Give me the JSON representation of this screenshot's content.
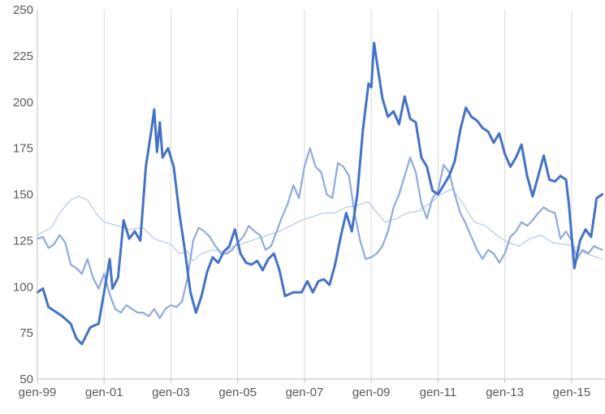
{
  "chart_data": {
    "type": "line",
    "title": "",
    "xlabel": "",
    "ylabel": "",
    "xlim": [
      "1999-01",
      "2015-12"
    ],
    "ylim": [
      50,
      250
    ],
    "grid": {
      "vertical": true,
      "horizontal": false
    },
    "legend": "none",
    "y_ticks": [
      50,
      75,
      100,
      125,
      150,
      175,
      200,
      225,
      250
    ],
    "x_ticks": [
      {
        "label": "gen-99",
        "date": "1999-01"
      },
      {
        "label": "gen-01",
        "date": "2001-01"
      },
      {
        "label": "gen-03",
        "date": "2003-01"
      },
      {
        "label": "gen-05",
        "date": "2005-01"
      },
      {
        "label": "gen-07",
        "date": "2007-01"
      },
      {
        "label": "gen-09",
        "date": "2009-01"
      },
      {
        "label": "gen-11",
        "date": "2011-01"
      },
      {
        "label": "gen-13",
        "date": "2013-01"
      },
      {
        "label": "gen-15",
        "date": "2015-01"
      }
    ],
    "series": [
      {
        "color": "#4472c4",
        "width": 3.0,
        "points": [
          [
            "1999-01",
            97
          ],
          [
            "1999-03",
            99
          ],
          [
            "1999-05",
            89
          ],
          [
            "1999-07",
            87
          ],
          [
            "1999-10",
            84
          ],
          [
            "2000-01",
            80
          ],
          [
            "2000-03",
            72
          ],
          [
            "2000-05",
            69
          ],
          [
            "2000-08",
            78
          ],
          [
            "2000-11",
            80
          ],
          [
            "2001-01",
            97
          ],
          [
            "2001-03",
            115
          ],
          [
            "2001-04",
            99
          ],
          [
            "2001-06",
            105
          ],
          [
            "2001-08",
            136
          ],
          [
            "2001-10",
            126
          ],
          [
            "2001-12",
            130
          ],
          [
            "2002-02",
            125
          ],
          [
            "2002-04",
            165
          ],
          [
            "2002-06",
            185
          ],
          [
            "2002-07",
            196
          ],
          [
            "2002-08",
            173
          ],
          [
            "2002-09",
            189
          ],
          [
            "2002-10",
            170
          ],
          [
            "2002-12",
            175
          ],
          [
            "2003-02",
            165
          ],
          [
            "2003-04",
            140
          ],
          [
            "2003-06",
            120
          ],
          [
            "2003-08",
            97
          ],
          [
            "2003-10",
            86
          ],
          [
            "2003-12",
            95
          ],
          [
            "2004-02",
            108
          ],
          [
            "2004-04",
            116
          ],
          [
            "2004-06",
            113
          ],
          [
            "2004-08",
            119
          ],
          [
            "2004-10",
            122
          ],
          [
            "2004-12",
            131
          ],
          [
            "2005-02",
            118
          ],
          [
            "2005-04",
            113
          ],
          [
            "2005-06",
            112
          ],
          [
            "2005-08",
            114
          ],
          [
            "2005-10",
            109
          ],
          [
            "2005-12",
            115
          ],
          [
            "2006-02",
            118
          ],
          [
            "2006-04",
            109
          ],
          [
            "2006-06",
            95
          ],
          [
            "2006-09",
            97
          ],
          [
            "2006-12",
            97
          ],
          [
            "2007-02",
            103
          ],
          [
            "2007-04",
            97
          ],
          [
            "2007-06",
            103
          ],
          [
            "2007-08",
            104
          ],
          [
            "2007-10",
            101
          ],
          [
            "2007-12",
            112
          ],
          [
            "2008-02",
            127
          ],
          [
            "2008-04",
            140
          ],
          [
            "2008-06",
            130
          ],
          [
            "2008-08",
            150
          ],
          [
            "2008-10",
            185
          ],
          [
            "2008-12",
            210
          ],
          [
            "2009-01",
            208
          ],
          [
            "2009-02",
            232
          ],
          [
            "2009-03",
            222
          ],
          [
            "2009-05",
            202
          ],
          [
            "2009-07",
            192
          ],
          [
            "2009-09",
            195
          ],
          [
            "2009-11",
            188
          ],
          [
            "2010-01",
            203
          ],
          [
            "2010-03",
            191
          ],
          [
            "2010-05",
            189
          ],
          [
            "2010-07",
            170
          ],
          [
            "2010-09",
            165
          ],
          [
            "2010-11",
            152
          ],
          [
            "2011-01",
            150
          ],
          [
            "2011-03",
            155
          ],
          [
            "2011-05",
            160
          ],
          [
            "2011-07",
            168
          ],
          [
            "2011-09",
            185
          ],
          [
            "2011-11",
            197
          ],
          [
            "2012-01",
            192
          ],
          [
            "2012-03",
            190
          ],
          [
            "2012-05",
            186
          ],
          [
            "2012-07",
            184
          ],
          [
            "2012-09",
            178
          ],
          [
            "2012-11",
            183
          ],
          [
            "2013-01",
            172
          ],
          [
            "2013-03",
            165
          ],
          [
            "2013-05",
            170
          ],
          [
            "2013-07",
            177
          ],
          [
            "2013-09",
            160
          ],
          [
            "2013-11",
            149
          ],
          [
            "2014-01",
            160
          ],
          [
            "2014-03",
            171
          ],
          [
            "2014-05",
            158
          ],
          [
            "2014-07",
            157
          ],
          [
            "2014-09",
            160
          ],
          [
            "2014-11",
            158
          ],
          [
            "2014-12",
            145
          ],
          [
            "2015-02",
            110
          ],
          [
            "2015-04",
            125
          ],
          [
            "2015-06",
            131
          ],
          [
            "2015-08",
            127
          ],
          [
            "2015-10",
            148
          ],
          [
            "2015-12",
            150
          ]
        ]
      },
      {
        "color": "#8faadc",
        "width": 2.2,
        "points": [
          [
            "1999-01",
            126
          ],
          [
            "1999-03",
            127
          ],
          [
            "1999-05",
            121
          ],
          [
            "1999-07",
            123
          ],
          [
            "1999-09",
            128
          ],
          [
            "1999-11",
            124
          ],
          [
            "2000-01",
            112
          ],
          [
            "2000-03",
            110
          ],
          [
            "2000-05",
            107
          ],
          [
            "2000-07",
            115
          ],
          [
            "2000-09",
            105
          ],
          [
            "2000-11",
            99
          ],
          [
            "2001-01",
            107
          ],
          [
            "2001-03",
            96
          ],
          [
            "2001-05",
            88
          ],
          [
            "2001-07",
            86
          ],
          [
            "2001-09",
            90
          ],
          [
            "2001-11",
            88
          ],
          [
            "2002-01",
            86
          ],
          [
            "2002-03",
            86
          ],
          [
            "2002-05",
            84
          ],
          [
            "2002-07",
            88
          ],
          [
            "2002-09",
            83
          ],
          [
            "2002-11",
            88
          ],
          [
            "2003-01",
            90
          ],
          [
            "2003-03",
            89
          ],
          [
            "2003-05",
            92
          ],
          [
            "2003-07",
            105
          ],
          [
            "2003-09",
            125
          ],
          [
            "2003-11",
            132
          ],
          [
            "2004-01",
            130
          ],
          [
            "2004-03",
            127
          ],
          [
            "2004-05",
            122
          ],
          [
            "2004-07",
            118
          ],
          [
            "2004-09",
            118
          ],
          [
            "2004-11",
            120
          ],
          [
            "2005-01",
            124
          ],
          [
            "2005-03",
            127
          ],
          [
            "2005-05",
            133
          ],
          [
            "2005-07",
            130
          ],
          [
            "2005-09",
            128
          ],
          [
            "2005-11",
            120
          ],
          [
            "2006-01",
            122
          ],
          [
            "2006-03",
            130
          ],
          [
            "2006-05",
            138
          ],
          [
            "2006-07",
            145
          ],
          [
            "2006-09",
            155
          ],
          [
            "2006-11",
            148
          ],
          [
            "2007-01",
            165
          ],
          [
            "2007-03",
            175
          ],
          [
            "2007-05",
            165
          ],
          [
            "2007-07",
            162
          ],
          [
            "2007-09",
            150
          ],
          [
            "2007-11",
            148
          ],
          [
            "2008-01",
            167
          ],
          [
            "2008-03",
            165
          ],
          [
            "2008-05",
            160
          ],
          [
            "2008-07",
            140
          ],
          [
            "2008-09",
            125
          ],
          [
            "2008-11",
            115
          ],
          [
            "2009-01",
            116
          ],
          [
            "2009-03",
            118
          ],
          [
            "2009-05",
            122
          ],
          [
            "2009-07",
            130
          ],
          [
            "2009-09",
            143
          ],
          [
            "2009-11",
            150
          ],
          [
            "2010-01",
            160
          ],
          [
            "2010-03",
            170
          ],
          [
            "2010-05",
            162
          ],
          [
            "2010-07",
            145
          ],
          [
            "2010-09",
            137
          ],
          [
            "2010-11",
            148
          ],
          [
            "2011-01",
            152
          ],
          [
            "2011-03",
            166
          ],
          [
            "2011-05",
            162
          ],
          [
            "2011-07",
            150
          ],
          [
            "2011-09",
            140
          ],
          [
            "2011-11",
            134
          ],
          [
            "2012-01",
            127
          ],
          [
            "2012-03",
            120
          ],
          [
            "2012-05",
            115
          ],
          [
            "2012-07",
            120
          ],
          [
            "2012-09",
            118
          ],
          [
            "2012-11",
            113
          ],
          [
            "2013-01",
            118
          ],
          [
            "2013-03",
            127
          ],
          [
            "2013-05",
            130
          ],
          [
            "2013-07",
            135
          ],
          [
            "2013-09",
            133
          ],
          [
            "2013-11",
            136
          ],
          [
            "2014-01",
            140
          ],
          [
            "2014-03",
            143
          ],
          [
            "2014-05",
            141
          ],
          [
            "2014-07",
            140
          ],
          [
            "2014-09",
            126
          ],
          [
            "2014-11",
            130
          ],
          [
            "2015-01",
            125
          ],
          [
            "2015-03",
            115
          ],
          [
            "2015-05",
            120
          ],
          [
            "2015-07",
            118
          ],
          [
            "2015-09",
            122
          ],
          [
            "2015-12",
            120
          ]
        ]
      },
      {
        "color": "#b4c7e7",
        "width": 1.2,
        "points": [
          [
            "1999-01",
            128
          ],
          [
            "1999-06",
            132
          ],
          [
            "1999-09",
            140
          ],
          [
            "2000-01",
            147
          ],
          [
            "2000-04",
            149
          ],
          [
            "2000-07",
            147
          ],
          [
            "2000-10",
            140
          ],
          [
            "2001-01",
            135
          ],
          [
            "2001-06",
            133
          ],
          [
            "2001-10",
            131
          ],
          [
            "2002-03",
            132
          ],
          [
            "2002-07",
            126
          ],
          [
            "2003-01",
            123
          ],
          [
            "2003-04",
            118
          ],
          [
            "2003-07",
            119
          ],
          [
            "2003-09",
            114
          ],
          [
            "2003-12",
            118
          ],
          [
            "2004-04",
            120
          ],
          [
            "2004-08",
            119
          ],
          [
            "2004-12",
            122
          ],
          [
            "2005-04",
            124
          ],
          [
            "2005-08",
            126
          ],
          [
            "2005-12",
            128
          ],
          [
            "2006-04",
            130
          ],
          [
            "2006-08",
            133
          ],
          [
            "2006-12",
            136
          ],
          [
            "2007-04",
            138
          ],
          [
            "2007-08",
            140
          ],
          [
            "2007-12",
            140
          ],
          [
            "2008-04",
            143
          ],
          [
            "2008-08",
            144
          ],
          [
            "2008-12",
            146
          ],
          [
            "2009-02",
            142
          ],
          [
            "2009-06",
            135
          ],
          [
            "2009-10",
            137
          ],
          [
            "2010-02",
            140
          ],
          [
            "2010-06",
            141
          ],
          [
            "2010-10",
            145
          ],
          [
            "2011-02",
            150
          ],
          [
            "2011-06",
            153
          ],
          [
            "2011-10",
            145
          ],
          [
            "2012-02",
            135
          ],
          [
            "2012-06",
            133
          ],
          [
            "2012-10",
            128
          ],
          [
            "2013-02",
            124
          ],
          [
            "2013-06",
            122
          ],
          [
            "2013-10",
            126
          ],
          [
            "2014-02",
            128
          ],
          [
            "2014-06",
            124
          ],
          [
            "2014-10",
            123
          ],
          [
            "2015-02",
            122
          ],
          [
            "2015-06",
            118
          ],
          [
            "2015-12",
            115
          ]
        ]
      }
    ]
  }
}
